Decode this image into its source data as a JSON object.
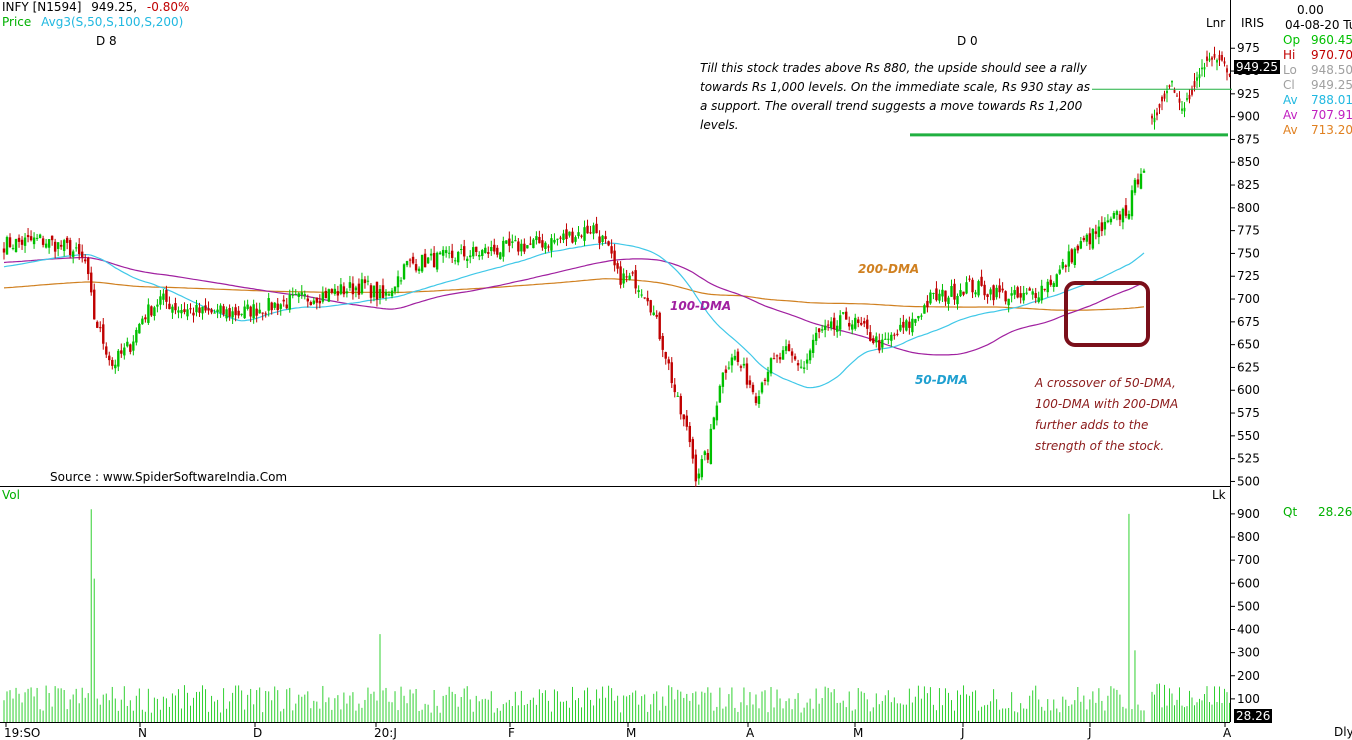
{
  "header": {
    "symbol": "INFY [N1594]",
    "price": "949.25,",
    "change": "-0.80%",
    "indicator_prefix": "Price",
    "indicator": "Avg3(S,50,S,100,S,200)",
    "marker_left": "D 8",
    "marker_mid": "D 0"
  },
  "right_panel": {
    "top_value": "0.00",
    "date": "04-08-20 Tu",
    "scale_label": "Lnr",
    "source_tag": "IRIS",
    "current_price_tag": "949.25",
    "stats": [
      {
        "label": "Op",
        "value": "960.45",
        "color": "#00c000"
      },
      {
        "label": "Hi",
        "value": "970.70",
        "color": "#c00000"
      },
      {
        "label": "Lo",
        "value": "948.50",
        "color": "#a0a0a0"
      },
      {
        "label": "Cl",
        "value": "949.25",
        "color": "#a0a0a0"
      },
      {
        "label": "Av",
        "value": "788.01",
        "color": "#20b8e0"
      },
      {
        "label": "Av",
        "value": "707.91",
        "color": "#c020c0"
      },
      {
        "label": "Av",
        "value": "713.20",
        "color": "#e08020"
      }
    ],
    "qt_label": "Qt",
    "qt_value": "28.26",
    "vol_tag": "28.26",
    "lk_label": "Lk",
    "dly_label": "Dly"
  },
  "volume_panel": {
    "label": "Vol"
  },
  "annotations": {
    "top_note": "Till this stock trades above Rs 880, the upside should see a rally towards Rs 1,000 levels. On the immediate scale, Rs 930 stay as a support. The overall trend suggests a move towards Rs 1,200 levels.",
    "cross_note": "A crossover of 50-DMA, 100-DMA with 200-DMA further adds to the strength of the stock.",
    "dma200": "200-DMA",
    "dma100": "100-DMA",
    "dma50": "50-DMA",
    "source": "Source : www.SpiderSoftwareIndia.Com"
  },
  "colors": {
    "up": "#00c000",
    "down": "#c00000",
    "dma50": "#40c8e8",
    "dma100": "#a020a0",
    "dma200": "#d08020",
    "support": "#20b040",
    "volume": "#30d030",
    "highlight": "#7a0f1a"
  },
  "chart_data": {
    "type": "candlestick",
    "y_axis": {
      "ticks": [
        500,
        525,
        550,
        575,
        600,
        625,
        650,
        675,
        700,
        725,
        750,
        775,
        800,
        825,
        850,
        875,
        900,
        925,
        950,
        975
      ],
      "range": [
        495,
        995
      ]
    },
    "volume_axis": {
      "ticks": [
        100,
        200,
        300,
        400,
        500,
        600,
        700,
        800,
        900
      ],
      "range": [
        0,
        960
      ]
    },
    "x_axis_labels": [
      "19:SO",
      "N",
      "D",
      "20:J",
      "F",
      "M",
      "A",
      "M",
      "J",
      "J",
      "A"
    ],
    "support_level": 880,
    "resistance_level": 930,
    "price_waypoints": [
      [
        0,
        760
      ],
      [
        12,
        765
      ],
      [
        22,
        755
      ],
      [
        27,
        740
      ],
      [
        30,
        680
      ],
      [
        36,
        628
      ],
      [
        42,
        650
      ],
      [
        46,
        680
      ],
      [
        52,
        700
      ],
      [
        58,
        690
      ],
      [
        66,
        685
      ],
      [
        78,
        685
      ],
      [
        92,
        695
      ],
      [
        106,
        705
      ],
      [
        120,
        715
      ],
      [
        126,
        700
      ],
      [
        134,
        738
      ],
      [
        146,
        745
      ],
      [
        160,
        752
      ],
      [
        172,
        758
      ],
      [
        184,
        765
      ],
      [
        196,
        778
      ],
      [
        200,
        760
      ],
      [
        204,
        725
      ],
      [
        210,
        720
      ],
      [
        214,
        705
      ],
      [
        220,
        640
      ],
      [
        224,
        585
      ],
      [
        228,
        545
      ],
      [
        230,
        508
      ],
      [
        234,
        530
      ],
      [
        238,
        610
      ],
      [
        242,
        640
      ],
      [
        246,
        620
      ],
      [
        250,
        595
      ],
      [
        254,
        625
      ],
      [
        260,
        640
      ],
      [
        266,
        625
      ],
      [
        270,
        660
      ],
      [
        276,
        668
      ],
      [
        280,
        680
      ],
      [
        286,
        665
      ],
      [
        292,
        648
      ],
      [
        296,
        660
      ],
      [
        302,
        675
      ],
      [
        308,
        700
      ],
      [
        314,
        705
      ],
      [
        320,
        715
      ],
      [
        326,
        710
      ],
      [
        332,
        705
      ],
      [
        338,
        700
      ],
      [
        344,
        710
      ],
      [
        350,
        725
      ],
      [
        354,
        745
      ],
      [
        360,
        765
      ],
      [
        366,
        778
      ],
      [
        370,
        790
      ],
      [
        374,
        800
      ],
      [
        378,
        845
      ]
    ],
    "inset_waypoints": [
      [
        0,
        895
      ],
      [
        4,
        912
      ],
      [
        8,
        935
      ],
      [
        12,
        910
      ],
      [
        16,
        925
      ],
      [
        20,
        955
      ],
      [
        24,
        965
      ],
      [
        28,
        958
      ],
      [
        31,
        949
      ]
    ],
    "volume_spikes": [
      [
        29,
        920
      ],
      [
        30,
        620
      ],
      [
        125,
        380
      ],
      [
        374,
        900
      ],
      [
        376,
        310
      ]
    ]
  }
}
